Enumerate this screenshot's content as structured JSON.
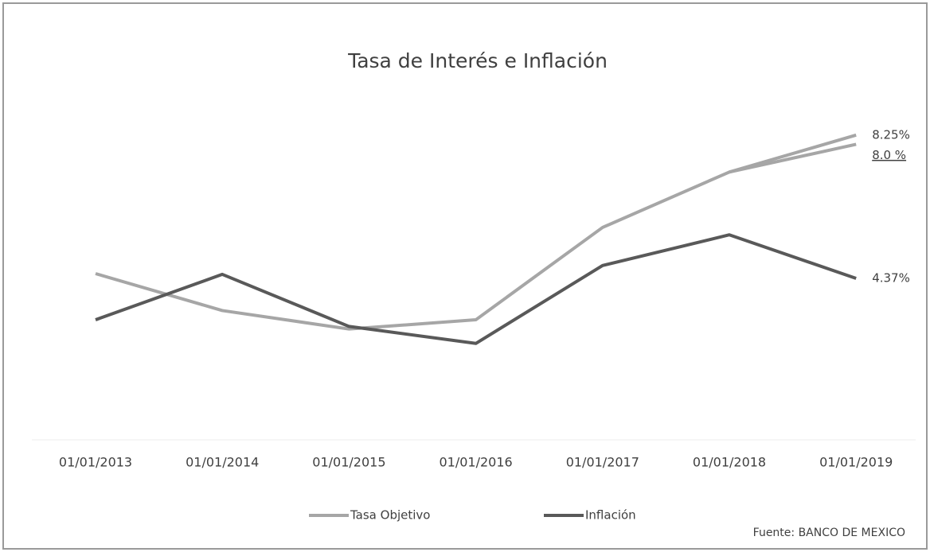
{
  "chart_data": {
    "type": "line",
    "title": "Tasa de Interés e Inflación",
    "categories": [
      "01/01/2013",
      "01/01/2014",
      "01/01/2015",
      "01/01/2016",
      "01/01/2017",
      "01/01/2018",
      "01/01/2019"
    ],
    "series": [
      {
        "name": "Tasa Objetivo",
        "color": "#a6a6a6",
        "values": [
          4.5,
          3.5,
          3.0,
          3.25,
          5.75,
          7.25,
          8.25
        ],
        "value_labels": [
          null,
          null,
          null,
          null,
          null,
          null,
          "8.25%"
        ]
      },
      {
        "name": "Inflación",
        "color": "#595959",
        "values": [
          3.25,
          4.48,
          3.07,
          2.61,
          4.72,
          5.55,
          4.37
        ],
        "value_labels": [
          null,
          null,
          null,
          null,
          null,
          null,
          "4.37%"
        ]
      },
      {
        "color": "#a6a6a6",
        "values": [
          null,
          null,
          null,
          null,
          null,
          7.25,
          8.0
        ],
        "value_labels": [
          null,
          null,
          null,
          null,
          null,
          null,
          "8.0 %"
        ]
      }
    ],
    "ylim": [
      0,
      9
    ],
    "source": "Fuente: BANCO DE MEXICO"
  }
}
